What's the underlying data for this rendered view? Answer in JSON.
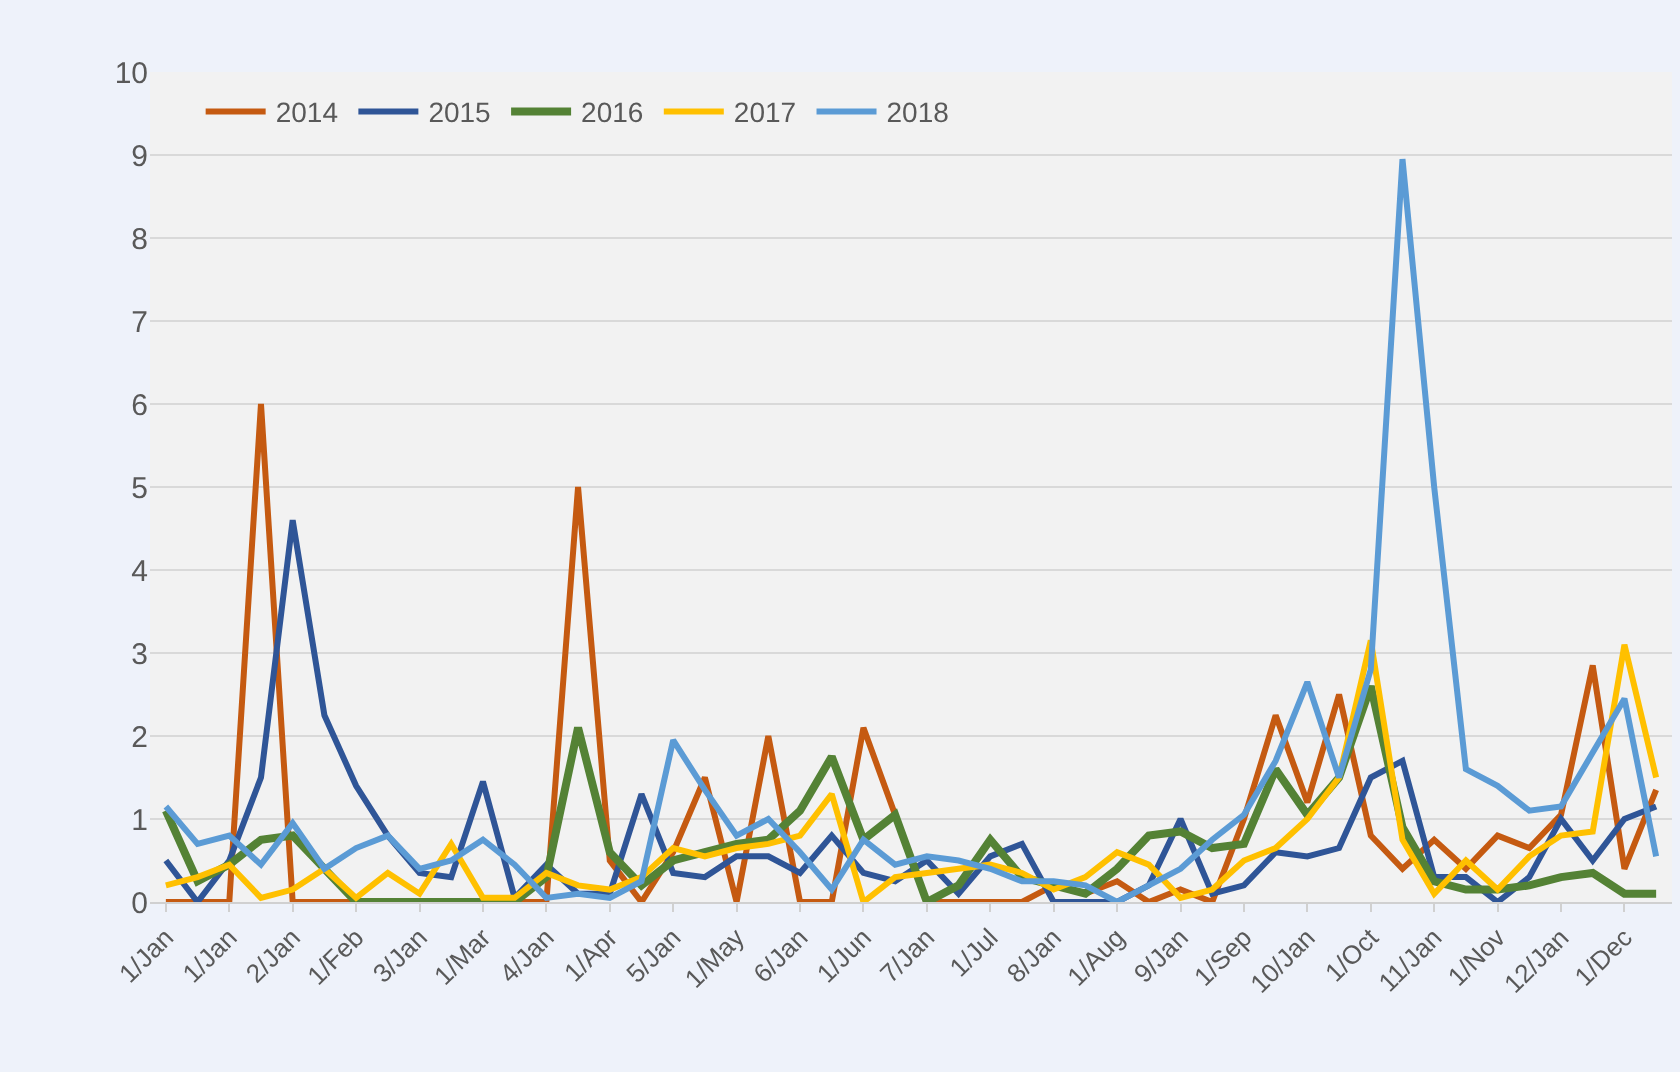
{
  "chart_data": {
    "type": "line",
    "categories": [
      "1/Jan",
      null,
      "1/Jan",
      null,
      "2/Jan",
      null,
      "1/Feb",
      null,
      "3/Jan",
      null,
      "1/Mar",
      null,
      "4/Jan",
      null,
      "1/Apr",
      null,
      "5/Jan",
      null,
      "1/May",
      null,
      "6/Jan",
      null,
      "1/Jun",
      null,
      "7/Jan",
      null,
      "1/Jul",
      null,
      "8/Jan",
      null,
      "1/Aug",
      null,
      "9/Jan",
      null,
      "1/Sep",
      null,
      "10/Jan",
      null,
      "1/Oct",
      null,
      "11/Jan",
      null,
      "1/Nov",
      null,
      "12/Jan",
      null,
      "1/Dec",
      null
    ],
    "series": [
      {
        "name": "2014",
        "color": "#c55a11",
        "values": [
          0,
          0,
          0,
          6,
          0,
          0,
          0,
          0,
          0,
          0,
          0,
          0,
          0,
          5,
          0.5,
          0,
          0.6,
          1.5,
          0,
          2,
          0,
          0,
          2.1,
          1.05,
          0,
          0,
          0,
          0,
          0.2,
          0.1,
          0.25,
          0,
          0.15,
          0,
          1,
          2.25,
          1.2,
          2.5,
          0.8,
          0.4,
          0.75,
          0.4,
          0.8,
          0.65,
          1.05,
          2.85,
          0.4,
          1.35
        ]
      },
      {
        "name": "2015",
        "color": "#2f5597",
        "values": [
          0.5,
          0,
          0.5,
          1.5,
          4.6,
          2.25,
          1.4,
          0.8,
          0.35,
          0.3,
          1.45,
          0.05,
          0.45,
          0.1,
          0.1,
          1.3,
          0.35,
          0.3,
          0.55,
          0.55,
          0.35,
          0.8,
          0.35,
          0.25,
          0.5,
          0.1,
          0.55,
          0.7,
          0,
          0,
          0,
          0.2,
          1,
          0.1,
          0.2,
          0.6,
          0.55,
          0.65,
          1.5,
          1.7,
          0.3,
          0.3,
          0,
          0.3,
          1,
          0.5,
          1,
          1.15
        ]
      },
      {
        "name": "2016",
        "color": "#548235",
        "values": [
          1.1,
          0.25,
          0.45,
          0.75,
          0.8,
          0.4,
          0,
          0,
          0,
          0,
          0,
          0,
          0.3,
          2.1,
          0.6,
          0.2,
          0.5,
          0.6,
          0.7,
          0.75,
          1.1,
          1.75,
          0.75,
          1.05,
          0,
          0.2,
          0.75,
          0.3,
          0.2,
          0.1,
          0.4,
          0.8,
          0.85,
          0.65,
          0.7,
          1.6,
          1.05,
          1.5,
          2.6,
          0.9,
          0.25,
          0.15,
          0.15,
          0.2,
          0.3,
          0.35,
          0.1,
          0.1
        ]
      },
      {
        "name": "2017",
        "color": "#ffc000",
        "values": [
          0.2,
          0.3,
          0.45,
          0.05,
          0.15,
          0.4,
          0.05,
          0.35,
          0.1,
          0.7,
          0.05,
          0.05,
          0.35,
          0.2,
          0.15,
          0.3,
          0.65,
          0.55,
          0.65,
          0.7,
          0.8,
          1.3,
          0,
          0.3,
          0.35,
          0.4,
          0.45,
          0.35,
          0.15,
          0.3,
          0.6,
          0.45,
          0.05,
          0.15,
          0.5,
          0.65,
          1,
          1.5,
          3.15,
          0.75,
          0.1,
          0.5,
          0.15,
          0.55,
          0.8,
          0.85,
          3.1,
          1.5
        ]
      },
      {
        "name": "2018",
        "color": "#5b9bd5",
        "values": [
          1.15,
          0.7,
          0.8,
          0.45,
          0.95,
          0.4,
          0.65,
          0.8,
          0.4,
          0.5,
          0.75,
          0.45,
          0.05,
          0.1,
          0.05,
          0.25,
          1.95,
          1.35,
          0.8,
          1,
          0.6,
          0.15,
          0.75,
          0.45,
          0.55,
          0.5,
          0.4,
          0.25,
          0.25,
          0.2,
          0,
          0.2,
          0.4,
          0.75,
          1.05,
          1.7,
          2.65,
          1.5,
          2.8,
          8.95,
          5,
          1.6,
          1.4,
          1.1,
          1.15,
          1.8,
          2.45,
          0.55
        ]
      }
    ],
    "ylim": [
      0,
      10
    ],
    "yticks": [
      0,
      1,
      2,
      3,
      4,
      5,
      6,
      7,
      8,
      9,
      10
    ],
    "grid": "y",
    "legend": "top left",
    "marker": "none",
    "line_style": "solid"
  }
}
